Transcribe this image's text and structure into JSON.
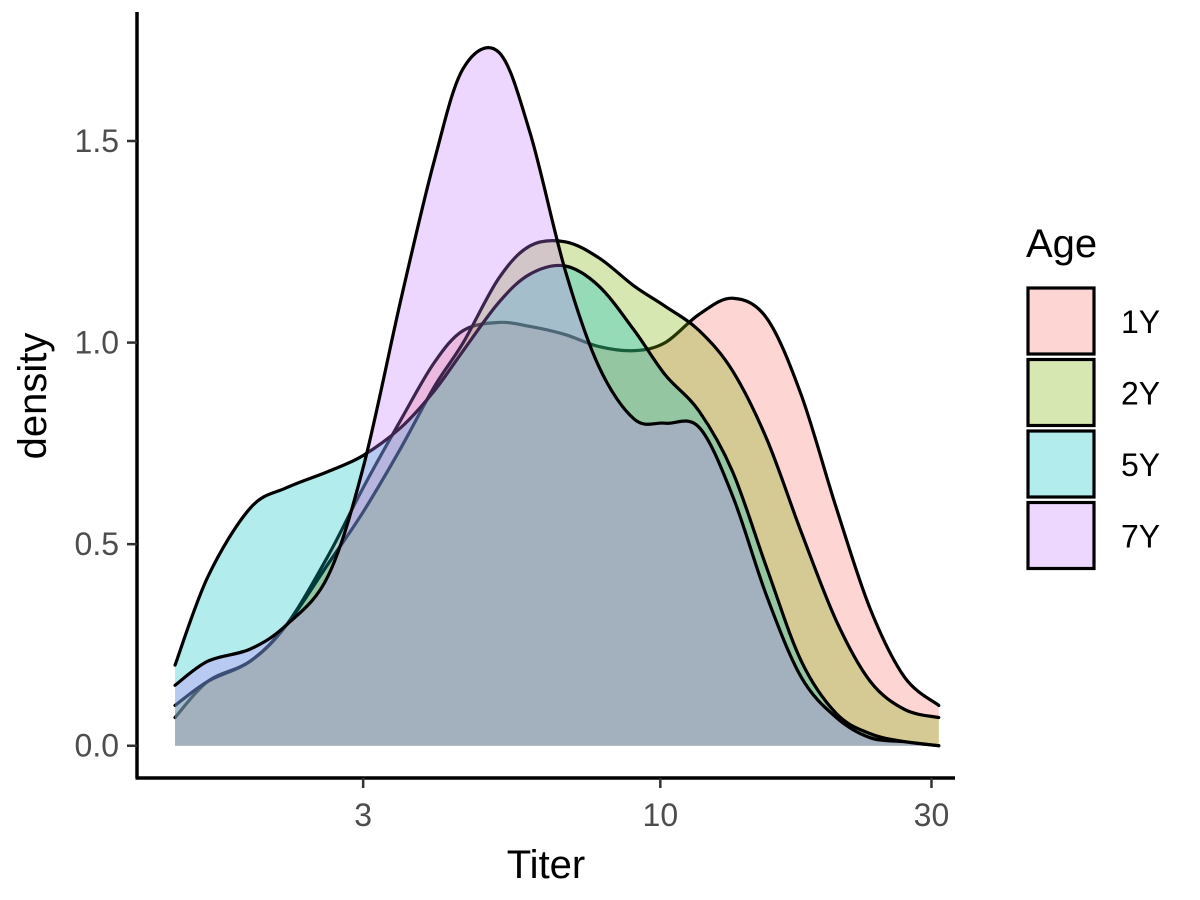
{
  "chart_data": {
    "type": "area",
    "title": "",
    "xlabel": "Titer",
    "ylabel": "density",
    "x_scale": "log10",
    "x_ticks": [
      3,
      10,
      30
    ],
    "x_tick_labels": [
      "3",
      "10",
      "30"
    ],
    "y_ticks": [
      0.0,
      0.5,
      1.0,
      1.5
    ],
    "y_tick_labels": [
      "0.0",
      "0.5",
      "1.0",
      "1.5"
    ],
    "xlim": [
      1.2,
      33
    ],
    "ylim": [
      -0.08,
      1.82
    ],
    "grid": false,
    "legend": {
      "title": "Age",
      "position": "right"
    },
    "series": [
      {
        "name": "1Y",
        "color": "#F8766D",
        "x": [
          1.4,
          1.6,
          1.9,
          2.2,
          2.6,
          3.0,
          3.5,
          4.0,
          4.5,
          5.2,
          5.9,
          6.8,
          7.8,
          9.0,
          10.2,
          11.7,
          13.4,
          15.4,
          17.7,
          20.4,
          23.4,
          26.9,
          30.9
        ],
        "y": [
          0.07,
          0.16,
          0.21,
          0.3,
          0.47,
          0.64,
          0.81,
          0.95,
          1.03,
          1.05,
          1.04,
          1.02,
          0.99,
          0.98,
          1.0,
          1.07,
          1.11,
          1.06,
          0.87,
          0.59,
          0.34,
          0.17,
          0.1
        ]
      },
      {
        "name": "2Y",
        "color": "#7CAE00",
        "x": [
          1.4,
          1.6,
          1.9,
          2.2,
          2.6,
          3.0,
          3.5,
          4.0,
          4.5,
          5.2,
          5.9,
          6.8,
          7.8,
          9.0,
          10.2,
          11.7,
          13.4,
          15.4,
          17.7,
          20.4,
          23.4,
          26.9,
          30.9
        ],
        "y": [
          0.1,
          0.16,
          0.21,
          0.3,
          0.45,
          0.58,
          0.74,
          0.89,
          1.0,
          1.16,
          1.24,
          1.25,
          1.21,
          1.14,
          1.09,
          1.03,
          0.93,
          0.76,
          0.53,
          0.31,
          0.16,
          0.09,
          0.07
        ]
      },
      {
        "name": "5Y",
        "color": "#00BFC4",
        "x": [
          1.4,
          1.6,
          1.9,
          2.2,
          2.6,
          3.0,
          3.5,
          4.0,
          4.5,
          5.2,
          5.9,
          6.8,
          7.8,
          9.0,
          10.2,
          11.7,
          13.4,
          15.4,
          17.7,
          20.4,
          23.4,
          26.9,
          30.9
        ],
        "y": [
          0.2,
          0.42,
          0.59,
          0.64,
          0.68,
          0.72,
          0.79,
          0.88,
          0.98,
          1.1,
          1.17,
          1.19,
          1.14,
          1.03,
          0.92,
          0.83,
          0.68,
          0.44,
          0.21,
          0.08,
          0.03,
          0.01,
          0.0
        ]
      },
      {
        "name": "7Y",
        "color": "#C77CFF",
        "x": [
          1.4,
          1.6,
          1.9,
          2.2,
          2.6,
          3.0,
          3.5,
          4.0,
          4.5,
          5.2,
          5.9,
          6.8,
          7.8,
          9.0,
          10.2,
          11.7,
          13.4,
          15.4,
          17.7,
          20.4,
          23.4,
          26.9,
          30.9
        ],
        "y": [
          0.15,
          0.21,
          0.24,
          0.3,
          0.42,
          0.69,
          1.11,
          1.45,
          1.68,
          1.72,
          1.52,
          1.18,
          0.94,
          0.81,
          0.8,
          0.79,
          0.62,
          0.37,
          0.17,
          0.07,
          0.02,
          0.01,
          0.0
        ]
      }
    ]
  }
}
